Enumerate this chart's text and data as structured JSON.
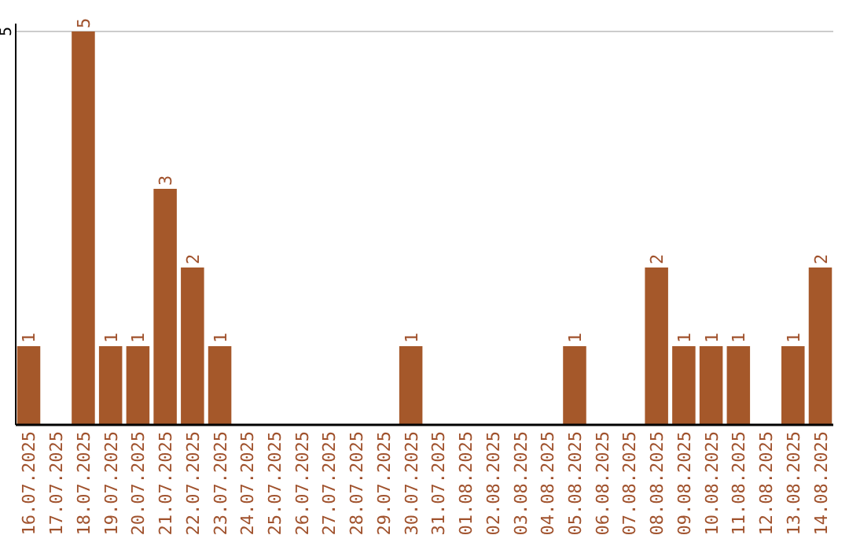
{
  "chart_data": {
    "type": "bar",
    "categories": [
      "16.07.2025",
      "17.07.2025",
      "18.07.2025",
      "19.07.2025",
      "20.07.2025",
      "21.07.2025",
      "22.07.2025",
      "23.07.2025",
      "24.07.2025",
      "25.07.2025",
      "26.07.2025",
      "27.07.2025",
      "28.07.2025",
      "29.07.2025",
      "30.07.2025",
      "31.07.2025",
      "01.08.2025",
      "02.08.2025",
      "03.08.2025",
      "04.08.2025",
      "05.08.2025",
      "06.08.2025",
      "07.08.2025",
      "08.08.2025",
      "09.08.2025",
      "10.08.2025",
      "11.08.2025",
      "12.08.2025",
      "13.08.2025",
      "14.08.2025"
    ],
    "values": [
      1,
      0,
      5,
      1,
      1,
      3,
      2,
      1,
      0,
      0,
      0,
      0,
      0,
      0,
      1,
      0,
      0,
      0,
      0,
      0,
      1,
      0,
      0,
      2,
      1,
      1,
      1,
      0,
      1,
      2
    ],
    "value_labels": [
      "1",
      null,
      "5",
      "1",
      "1",
      "3",
      "2",
      "1",
      null,
      null,
      null,
      null,
      null,
      null,
      "1",
      null,
      null,
      null,
      null,
      null,
      "1",
      null,
      null,
      "2",
      "1",
      "1",
      "1",
      null,
      "1",
      "2"
    ],
    "color": "#a5582a",
    "ylim": [
      0,
      5
    ],
    "yticks": [
      5
    ],
    "ref_lines": [
      {
        "axis": "y",
        "value": 5,
        "color": "#cccccc"
      }
    ]
  }
}
